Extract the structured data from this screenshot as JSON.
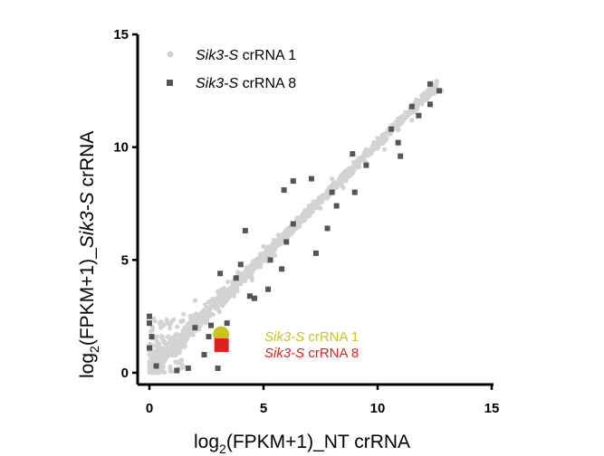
{
  "chart_data": {
    "type": "scatter",
    "xlabel": {
      "base": "log",
      "sub": "2",
      "rest": "(FPKM+1)_NT crRNA"
    },
    "ylabel": {
      "base": "log",
      "sub": "2",
      "rest1": "(FPKM+1)_",
      "italic": "Sik3-S",
      "rest2": " crRNA"
    },
    "xlim": [
      0,
      15
    ],
    "ylim": [
      0,
      15
    ],
    "xticks": [
      "0",
      "5",
      "10",
      "15"
    ],
    "yticks": [
      "0",
      "5",
      "10",
      "15"
    ],
    "grid": false,
    "legend_position": "top-left",
    "series": [
      {
        "name": "Sik3-S crRNA 1",
        "name_italic": "Sik3-S",
        "name_rest": " crRNA 1",
        "marker": "circle",
        "color": "#d3d3d3",
        "description": "dense cloud along y = x, from 0 to ~12.7",
        "points": [
          [
            0.1,
            0.4
          ],
          [
            0.3,
            1.2
          ],
          [
            0.5,
            2.0
          ],
          [
            0.2,
            2.4
          ],
          [
            0.8,
            1.6
          ],
          [
            1.0,
            2.3
          ],
          [
            1.5,
            2.6
          ],
          [
            1.8,
            2.1
          ],
          [
            2.0,
            3.2
          ],
          [
            2.5,
            2.7
          ],
          [
            3.0,
            3.6
          ],
          [
            3.3,
            3.1
          ],
          [
            4.0,
            4.4
          ],
          [
            4.5,
            4.1
          ],
          [
            5.0,
            5.6
          ],
          [
            5.5,
            5.2
          ],
          [
            6.0,
            6.3
          ],
          [
            6.6,
            6.7
          ],
          [
            7.0,
            7.4
          ],
          [
            7.5,
            7.3
          ],
          [
            8.0,
            8.6
          ],
          [
            8.5,
            8.2
          ],
          [
            9.0,
            9.3
          ],
          [
            9.5,
            9.8
          ],
          [
            10.0,
            10.4
          ],
          [
            10.3,
            9.9
          ],
          [
            11.0,
            11.3
          ],
          [
            11.5,
            11.2
          ],
          [
            12.0,
            12.2
          ],
          [
            12.5,
            12.7
          ],
          [
            12.8,
            12.5
          ]
        ]
      },
      {
        "name": "Sik3-S crRNA 8",
        "name_italic": "Sik3-S",
        "name_rest": " crRNA 8",
        "marker": "square",
        "color": "#555555",
        "points": [
          [
            0,
            2.2
          ],
          [
            0,
            2.5
          ],
          [
            0,
            1.1
          ],
          [
            0.1,
            1.6
          ],
          [
            0.3,
            0.3
          ],
          [
            1.2,
            0.1
          ],
          [
            1.7,
            0.2
          ],
          [
            2.0,
            2.0
          ],
          [
            2.4,
            0.8
          ],
          [
            2.6,
            1.6
          ],
          [
            2.7,
            2.1
          ],
          [
            3.0,
            0.2
          ],
          [
            3.1,
            4.4
          ],
          [
            3.4,
            2.2
          ],
          [
            3.8,
            4.2
          ],
          [
            4.0,
            4.8
          ],
          [
            4.4,
            3.4
          ],
          [
            4.6,
            3.3
          ],
          [
            4.2,
            6.3
          ],
          [
            5.2,
            3.7
          ],
          [
            5.3,
            5.0
          ],
          [
            5.8,
            4.6
          ],
          [
            6.0,
            5.8
          ],
          [
            6.3,
            6.6
          ],
          [
            7.3,
            5.3
          ],
          [
            7.8,
            6.4
          ],
          [
            9.0,
            8.0
          ],
          [
            9.5,
            9.2
          ],
          [
            5.9,
            8.1
          ],
          [
            6.3,
            8.5
          ],
          [
            7.1,
            8.6
          ],
          [
            8.0,
            8.0
          ],
          [
            8.2,
            7.4
          ],
          [
            8.9,
            9.7
          ],
          [
            10.6,
            10.8
          ],
          [
            10.9,
            10.2
          ],
          [
            11.5,
            11.8
          ],
          [
            11.8,
            11.4
          ],
          [
            12.3,
            11.9
          ],
          [
            12.7,
            12.5
          ],
          [
            12.3,
            12.8
          ],
          [
            11.0,
            9.6
          ]
        ]
      }
    ],
    "annotations": [
      {
        "italic": "Sik3-S",
        "rest": " crRNA 1",
        "color": "#c8c41e",
        "x": 3.1,
        "y": 1.7,
        "marker": "circle"
      },
      {
        "italic": "Sik3-S",
        "rest": " crRNA 8",
        "color": "#e0201e",
        "x": 3.2,
        "y": 1.2,
        "marker": "square"
      }
    ]
  }
}
